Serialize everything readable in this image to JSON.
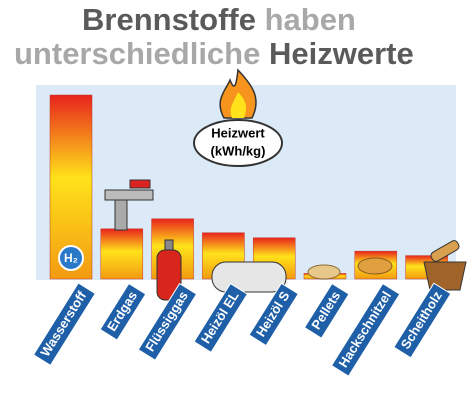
{
  "chart_data": {
    "type": "bar",
    "title_parts": [
      "Brennstoffe",
      "haben",
      "unterschiedliche",
      "Heizwerte"
    ],
    "unit_label": [
      "Heizwert",
      "(kWh/kg)"
    ],
    "icon_label": "H₂",
    "categories": [
      "Wasserstoff",
      "Erdgas",
      "Flüssiggas",
      "Heizöl EL",
      "Heizöl S",
      "Pellets",
      "Hackschnitzel",
      "Scheitholz"
    ],
    "values": [
      33,
      9,
      10.8,
      8.3,
      7.4,
      1,
      5,
      4.2
    ]
  }
}
